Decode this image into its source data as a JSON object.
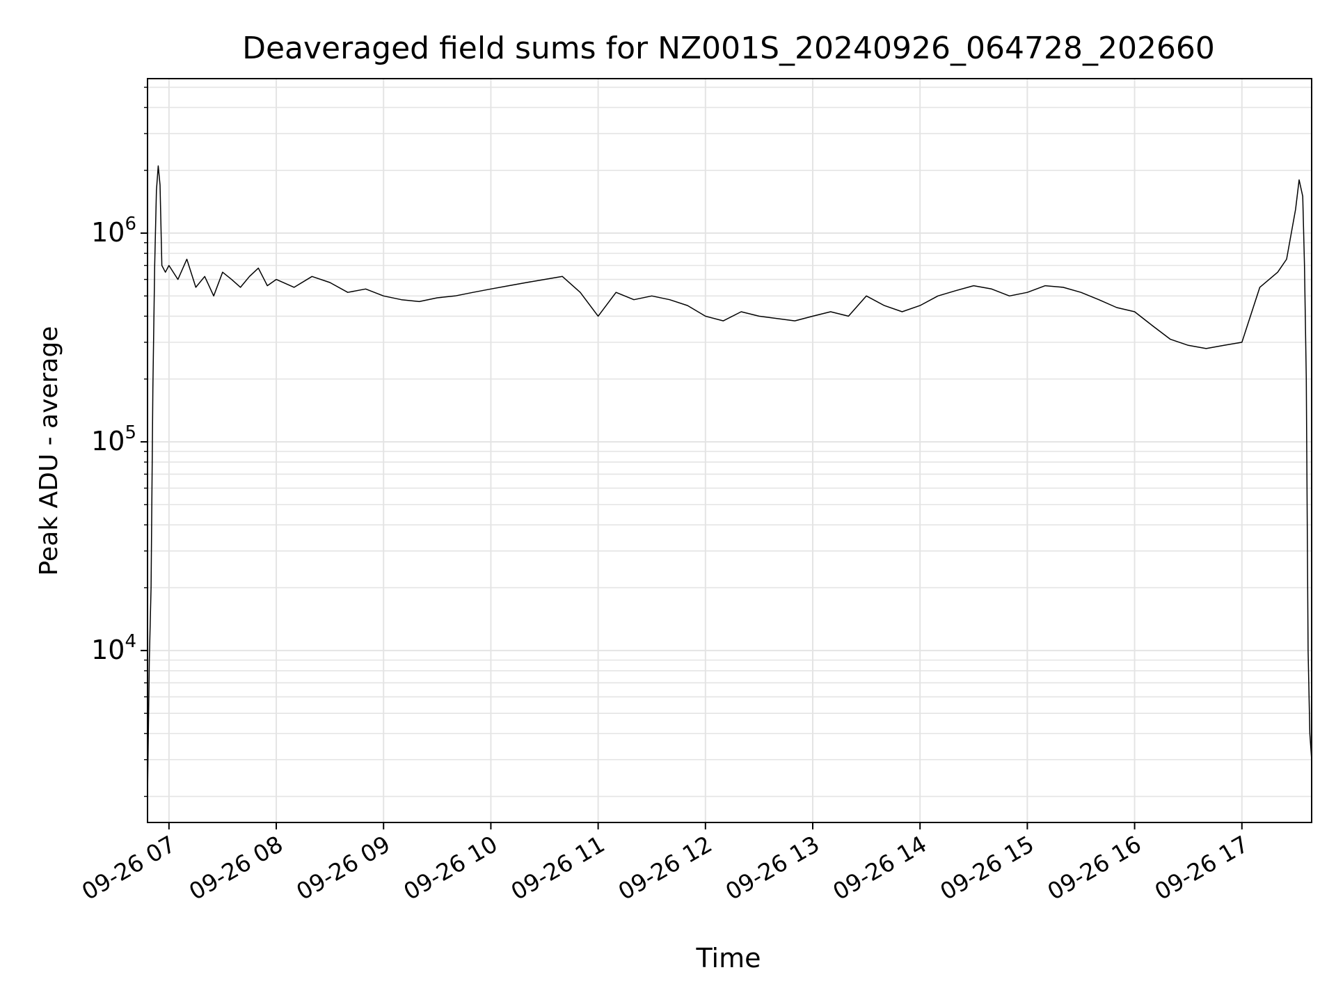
{
  "chart_data": {
    "type": "line",
    "title": "Deaveraged field sums for NZ001S_20240926_064728_202660",
    "xlabel": "Time",
    "ylabel": "Peak ADU - average",
    "yscale": "log",
    "ylim": [
      1500,
      5500000
    ],
    "xlim": [
      "2024-09-26 06:48",
      "2024-09-26 17:39"
    ],
    "grid": true,
    "line_color": "#000000",
    "grid_color": "#e4e4e4",
    "x_ticks": [
      {
        "t": "2024-09-26 07:00",
        "label": "09-26 07"
      },
      {
        "t": "2024-09-26 08:00",
        "label": "09-26 08"
      },
      {
        "t": "2024-09-26 09:00",
        "label": "09-26 09"
      },
      {
        "t": "2024-09-26 10:00",
        "label": "09-26 10"
      },
      {
        "t": "2024-09-26 11:00",
        "label": "09-26 11"
      },
      {
        "t": "2024-09-26 12:00",
        "label": "09-26 12"
      },
      {
        "t": "2024-09-26 13:00",
        "label": "09-26 13"
      },
      {
        "t": "2024-09-26 14:00",
        "label": "09-26 14"
      },
      {
        "t": "2024-09-26 15:00",
        "label": "09-26 15"
      },
      {
        "t": "2024-09-26 16:00",
        "label": "09-26 16"
      },
      {
        "t": "2024-09-26 17:00",
        "label": "09-26 17"
      }
    ],
    "y_ticks": [
      {
        "value": 10000,
        "base": "10",
        "exp": "4"
      },
      {
        "value": 100000,
        "base": "10",
        "exp": "5"
      },
      {
        "value": 1000000,
        "base": "10",
        "exp": "6"
      }
    ],
    "series": [
      {
        "x": [
          "2024-09-26 06:48",
          "2024-09-26 06:49",
          "2024-09-26 06:50",
          "2024-09-26 06:51",
          "2024-09-26 06:52",
          "2024-09-26 06:53",
          "2024-09-26 06:54",
          "2024-09-26 06:55",
          "2024-09-26 06:56",
          "2024-09-26 06:58",
          "2024-09-26 07:00",
          "2024-09-26 07:05",
          "2024-09-26 07:10",
          "2024-09-26 07:15",
          "2024-09-26 07:20",
          "2024-09-26 07:25",
          "2024-09-26 07:30",
          "2024-09-26 07:35",
          "2024-09-26 07:40",
          "2024-09-26 07:45",
          "2024-09-26 07:50",
          "2024-09-26 07:55",
          "2024-09-26 08:00",
          "2024-09-26 08:10",
          "2024-09-26 08:20",
          "2024-09-26 08:30",
          "2024-09-26 08:40",
          "2024-09-26 08:50",
          "2024-09-26 09:00",
          "2024-09-26 09:10",
          "2024-09-26 09:20",
          "2024-09-26 09:30",
          "2024-09-26 09:40",
          "2024-09-26 09:50",
          "2024-09-26 10:00",
          "2024-09-26 10:10",
          "2024-09-26 10:20",
          "2024-09-26 10:30",
          "2024-09-26 10:40",
          "2024-09-26 10:50",
          "2024-09-26 11:00",
          "2024-09-26 11:10",
          "2024-09-26 11:20",
          "2024-09-26 11:30",
          "2024-09-26 11:40",
          "2024-09-26 11:50",
          "2024-09-26 12:00",
          "2024-09-26 12:10",
          "2024-09-26 12:20",
          "2024-09-26 12:30",
          "2024-09-26 12:40",
          "2024-09-26 12:50",
          "2024-09-26 13:00",
          "2024-09-26 13:10",
          "2024-09-26 13:20",
          "2024-09-26 13:30",
          "2024-09-26 13:40",
          "2024-09-26 13:50",
          "2024-09-26 14:00",
          "2024-09-26 14:10",
          "2024-09-26 14:20",
          "2024-09-26 14:30",
          "2024-09-26 14:40",
          "2024-09-26 14:50",
          "2024-09-26 15:00",
          "2024-09-26 15:10",
          "2024-09-26 15:20",
          "2024-09-26 15:30",
          "2024-09-26 15:40",
          "2024-09-26 15:50",
          "2024-09-26 16:00",
          "2024-09-26 16:10",
          "2024-09-26 16:20",
          "2024-09-26 16:30",
          "2024-09-26 16:40",
          "2024-09-26 16:50",
          "2024-09-26 17:00",
          "2024-09-26 17:10",
          "2024-09-26 17:20",
          "2024-09-26 17:25",
          "2024-09-26 17:30",
          "2024-09-26 17:32",
          "2024-09-26 17:34",
          "2024-09-26 17:35",
          "2024-09-26 17:36",
          "2024-09-26 17:37",
          "2024-09-26 17:38",
          "2024-09-26 17:39"
        ],
        "y": [
          2000,
          9000,
          20000,
          180000,
          700000,
          1600000,
          2100000,
          1700000,
          700000,
          650000,
          700000,
          600000,
          750000,
          550000,
          620000,
          500000,
          650000,
          600000,
          550000,
          620000,
          680000,
          560000,
          600000,
          550000,
          620000,
          580000,
          520000,
          540000,
          500000,
          480000,
          470000,
          490000,
          500000,
          520000,
          540000,
          560000,
          580000,
          600000,
          620000,
          520000,
          400000,
          520000,
          480000,
          500000,
          480000,
          450000,
          400000,
          380000,
          420000,
          400000,
          390000,
          380000,
          400000,
          420000,
          400000,
          500000,
          450000,
          420000,
          450000,
          500000,
          530000,
          560000,
          540000,
          500000,
          520000,
          560000,
          550000,
          520000,
          480000,
          440000,
          420000,
          360000,
          310000,
          290000,
          280000,
          290000,
          300000,
          550000,
          650000,
          750000,
          1300000,
          1800000,
          1500000,
          700000,
          200000,
          10000,
          4000,
          3000
        ]
      }
    ]
  }
}
